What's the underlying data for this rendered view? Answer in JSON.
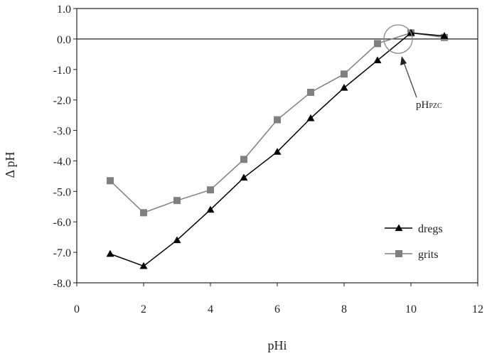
{
  "chart_data": {
    "type": "line",
    "xlabel": "pHi",
    "ylabel": "Δ pH",
    "xlim": [
      0,
      12
    ],
    "ylim": [
      -8,
      1
    ],
    "x_ticks": [
      "0",
      "2",
      "4",
      "6",
      "8",
      "10",
      "12"
    ],
    "y_ticks": [
      "1.0",
      "0.0",
      "-1.0",
      "-2.0",
      "-3.0",
      "-4.0",
      "-5.0",
      "-6.0",
      "-7.0",
      "-8.0"
    ],
    "grid": false,
    "legend_position": "bottom-right",
    "series": [
      {
        "name": "dregs",
        "marker": "triangle",
        "color": "#000000",
        "x": [
          1,
          2,
          3,
          4,
          5,
          6,
          7,
          8,
          9,
          10,
          11
        ],
        "y": [
          -7.05,
          -7.45,
          -6.6,
          -5.6,
          -4.55,
          -3.7,
          -2.6,
          -1.6,
          -0.7,
          0.2,
          0.1
        ]
      },
      {
        "name": "grits",
        "marker": "square",
        "color": "#808080",
        "x": [
          1,
          2,
          3,
          4,
          5,
          6,
          7,
          8,
          9,
          10,
          11
        ],
        "y": [
          -4.65,
          -5.7,
          -5.3,
          -4.95,
          -3.95,
          -2.65,
          -1.75,
          -1.15,
          -0.15,
          0.2,
          0.05
        ]
      }
    ],
    "annotation": {
      "text": "pH",
      "subscript": "PZC",
      "target_x": 9.7,
      "target_y": 0.0
    }
  }
}
